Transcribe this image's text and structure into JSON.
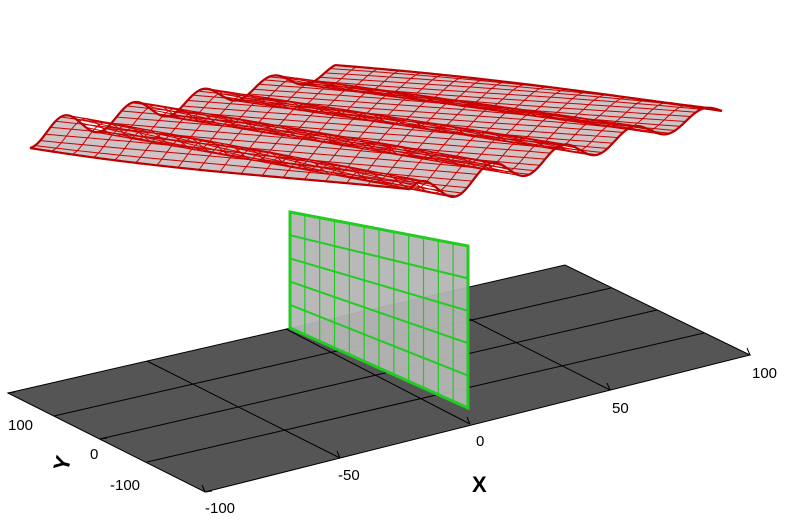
{
  "axes": {
    "x": {
      "title": "X",
      "ticks": [
        "-100",
        "-50",
        "0",
        "50",
        "100"
      ]
    },
    "y": {
      "title": "Y",
      "ticks": [
        "-100",
        "0",
        "100"
      ]
    }
  },
  "colors": {
    "background": "#ffffff",
    "ground_plane": "#555555",
    "ground_grid": "#000000",
    "wavy_surface_fill": "#cfc3c5",
    "wavy_surface_mesh": "#cc0000",
    "vertical_plane_fill": "#b5b5b5",
    "vertical_plane_mesh": "#22cc22"
  },
  "elements": {
    "ground_plane": "dark-gray-ground-plane",
    "wavy_surface": "red-mesh-wavy-surface",
    "vertical_plane": "green-mesh-vertical-plane"
  }
}
